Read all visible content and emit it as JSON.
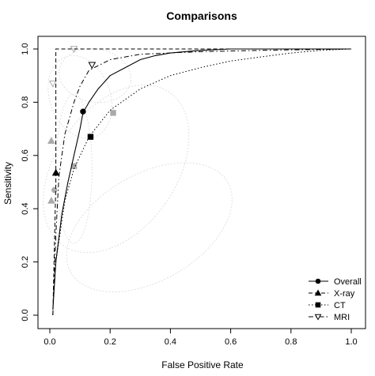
{
  "chart_data": {
    "type": "line",
    "title": "Comparisons",
    "xlabel": "False Positive Rate",
    "ylabel": "Sensitivity",
    "xlim": [
      0,
      1
    ],
    "ylim": [
      0,
      1
    ],
    "x_ticks": [
      "0.0",
      "0.2",
      "0.4",
      "0.6",
      "0.8",
      "1.0"
    ],
    "y_ticks": [
      "0.0",
      "0.2",
      "0.4",
      "0.6",
      "0.8",
      "1.0"
    ],
    "grid": false,
    "legend_position": "bottom-right",
    "legend": [
      "Overall",
      "X-ray",
      "CT",
      "MRI"
    ],
    "series": [
      {
        "name": "Overall",
        "line_style": "solid",
        "marker": "filled-circle",
        "color": "#000000",
        "curve": [
          [
            0.01,
            0.02
          ],
          [
            0.02,
            0.2
          ],
          [
            0.04,
            0.38
          ],
          [
            0.06,
            0.5
          ],
          [
            0.08,
            0.6
          ],
          [
            0.1,
            0.7
          ],
          [
            0.11,
            0.76
          ],
          [
            0.13,
            0.8
          ],
          [
            0.16,
            0.85
          ],
          [
            0.2,
            0.9
          ],
          [
            0.25,
            0.93
          ],
          [
            0.3,
            0.96
          ],
          [
            0.35,
            0.975
          ],
          [
            0.4,
            0.985
          ],
          [
            0.5,
            0.995
          ],
          [
            0.6,
            1.0
          ],
          [
            1.0,
            1.0
          ]
        ],
        "summary_point": [
          0.11,
          0.765
        ]
      },
      {
        "name": "X-ray",
        "line_style": "dashed",
        "marker": "filled-triangle",
        "color": "#000000",
        "curve": [
          [
            0.01,
            0.0
          ],
          [
            0.02,
            0.5
          ],
          [
            0.02,
            1.0
          ],
          [
            0.03,
            1.0
          ],
          [
            0.7,
            1.0
          ]
        ],
        "summary_point": [
          0.02,
          0.535
        ]
      },
      {
        "name": "CT",
        "line_style": "dotted",
        "marker": "filled-square",
        "color": "#000000",
        "curve": [
          [
            0.02,
            0.2
          ],
          [
            0.05,
            0.43
          ],
          [
            0.08,
            0.55
          ],
          [
            0.13,
            0.67
          ],
          [
            0.2,
            0.77
          ],
          [
            0.3,
            0.85
          ],
          [
            0.4,
            0.9
          ],
          [
            0.5,
            0.93
          ],
          [
            0.6,
            0.955
          ],
          [
            0.7,
            0.97
          ],
          [
            0.8,
            0.985
          ],
          [
            0.9,
            0.995
          ],
          [
            1.0,
            1.0
          ]
        ],
        "summary_point": [
          0.135,
          0.67
        ]
      },
      {
        "name": "MRI",
        "line_style": "dash-dot",
        "marker": "open-triangle-down",
        "color": "#000000",
        "curve": [
          [
            0.01,
            0.0
          ],
          [
            0.02,
            0.3
          ],
          [
            0.03,
            0.52
          ],
          [
            0.05,
            0.68
          ],
          [
            0.08,
            0.8
          ],
          [
            0.1,
            0.86
          ],
          [
            0.13,
            0.92
          ],
          [
            0.2,
            0.96
          ],
          [
            0.3,
            0.98
          ],
          [
            0.5,
            0.99
          ],
          [
            0.7,
            0.995
          ],
          [
            1.0,
            1.0
          ]
        ],
        "summary_point": [
          0.14,
          0.94
        ]
      }
    ],
    "study_points": {
      "color": "#aaaaaa",
      "points": [
        {
          "x": 0.005,
          "y": 0.655,
          "shape": "triangle"
        },
        {
          "x": 0.005,
          "y": 0.43,
          "shape": "triangle"
        },
        {
          "x": 0.01,
          "y": 0.87,
          "shape": "triangle-down"
        },
        {
          "x": 0.08,
          "y": 1.0,
          "shape": "triangle-down"
        },
        {
          "x": 0.08,
          "y": 0.56,
          "shape": "square"
        },
        {
          "x": 0.21,
          "y": 0.76,
          "shape": "square"
        },
        {
          "x": 0.015,
          "y": 0.47,
          "shape": "circle"
        }
      ]
    }
  }
}
